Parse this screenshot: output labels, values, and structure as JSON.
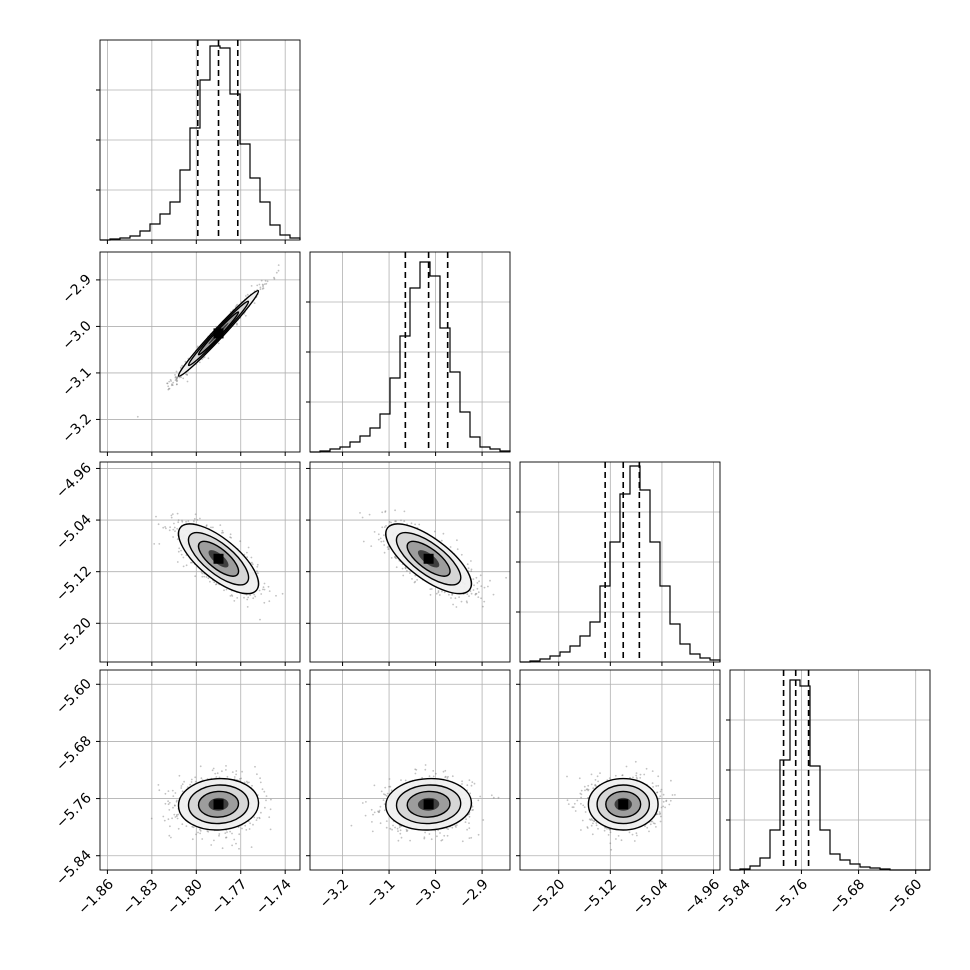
{
  "chart_data": {
    "type": "scatter",
    "subtype": "corner-plot",
    "parameters": [
      {
        "median": -1.785,
        "q16": -1.799,
        "q84": -1.772,
        "range": [
          -1.865,
          -1.73
        ],
        "ticks": [
          -1.86,
          -1.83,
          -1.8,
          -1.77,
          -1.74
        ],
        "tick_labels": [
          "−1.86",
          "−1.83",
          "−1.80",
          "−1.77",
          "−1.74"
        ],
        "hist": [
          0.0,
          0.005,
          0.01,
          0.02,
          0.045,
          0.08,
          0.13,
          0.19,
          0.35,
          0.56,
          0.8,
          0.97,
          0.96,
          0.73,
          0.48,
          0.31,
          0.19,
          0.075,
          0.025,
          0.01
        ]
      },
      {
        "median": -3.015,
        "q16": -3.065,
        "q84": -2.974,
        "range": [
          -3.27,
          -2.84
        ],
        "ticks": [
          -3.2,
          -3.1,
          -3.0,
          -2.9
        ],
        "tick_labels": [
          "−3.2",
          "−3.1",
          "−3.0",
          "−2.9"
        ],
        "hist": [
          0.0,
          0.005,
          0.015,
          0.025,
          0.05,
          0.08,
          0.12,
          0.19,
          0.37,
          0.58,
          0.82,
          0.95,
          0.88,
          0.62,
          0.4,
          0.2,
          0.075,
          0.025,
          0.015,
          0.005
        ]
      },
      {
        "median": -5.1,
        "q16": -5.128,
        "q84": -5.075,
        "range": [
          -5.26,
          -4.95
        ],
        "ticks": [
          -5.2,
          -5.12,
          -5.04,
          -4.96
        ],
        "tick_labels": [
          "−5.20",
          "−5.12",
          "−5.04",
          "−4.96"
        ],
        "hist": [
          0.0,
          0.005,
          0.015,
          0.03,
          0.05,
          0.08,
          0.13,
          0.2,
          0.38,
          0.6,
          0.84,
          0.98,
          0.86,
          0.6,
          0.38,
          0.19,
          0.09,
          0.04,
          0.02,
          0.01
        ]
      },
      {
        "median": -5.768,
        "q16": -5.785,
        "q84": -5.75,
        "range": [
          -5.86,
          -5.58
        ],
        "ticks": [
          -5.84,
          -5.76,
          -5.68,
          -5.6
        ],
        "tick_labels": [
          "−5.84",
          "−5.76",
          "−5.68",
          "−5.60"
        ],
        "hist": [
          0.0,
          0.005,
          0.02,
          0.06,
          0.2,
          0.55,
          0.95,
          0.92,
          0.52,
          0.2,
          0.08,
          0.05,
          0.03,
          0.015,
          0.01,
          0.005,
          0.0,
          0.0,
          0.0,
          0.0
        ]
      }
    ],
    "correlations": [
      {
        "pair": [
          0,
          1
        ],
        "corr": 0.985,
        "sx": 0.0135,
        "sy": 0.046
      },
      {
        "pair": [
          0,
          2
        ],
        "corr": -0.72,
        "sx": 0.0135,
        "sy": 0.027
      },
      {
        "pair": [
          1,
          2
        ],
        "corr": -0.72,
        "sx": 0.046,
        "sy": 0.027
      },
      {
        "pair": [
          0,
          3
        ],
        "corr": 0.05,
        "sx": 0.0135,
        "sy": 0.018
      },
      {
        "pair": [
          1,
          3
        ],
        "corr": 0.05,
        "sx": 0.046,
        "sy": 0.018
      },
      {
        "pair": [
          2,
          3
        ],
        "corr": 0.0,
        "sx": 0.027,
        "sy": 0.018
      }
    ],
    "quantiles": [
      0.16,
      0.5,
      0.84
    ],
    "grid": true,
    "colors": {
      "line": "#000000",
      "points": "#777777",
      "grid": "#b0b0b0"
    }
  }
}
